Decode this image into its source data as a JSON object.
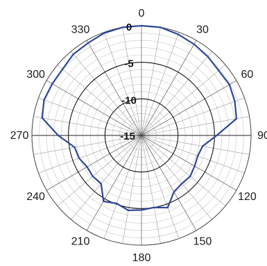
{
  "chart_data": {
    "type": "polar-line",
    "title": "",
    "angle_unit": "degrees",
    "angle_direction": "clockwise",
    "zero_position": "top",
    "angle_ticks": [
      0,
      30,
      60,
      90,
      120,
      150,
      180,
      210,
      240,
      270,
      300,
      330
    ],
    "angle_tick_labels": [
      "0",
      "30",
      "60",
      "90",
      "120",
      "150",
      "180",
      "210",
      "240",
      "270",
      "300",
      "330"
    ],
    "radial_ticks": [
      0,
      -5,
      -10,
      -15
    ],
    "radial_tick_labels": [
      "0",
      "-5",
      "-10",
      "-15"
    ],
    "radial_range": [
      -15,
      0
    ],
    "grid": true,
    "minor_angle_step": 10,
    "minor_radial_step": 1,
    "series": [
      {
        "color": "#2e4799",
        "angles": [
          0,
          10,
          20,
          30,
          40,
          50,
          60,
          70,
          80,
          90,
          100,
          110,
          120,
          130,
          140,
          150,
          160,
          170,
          180,
          190,
          200,
          210,
          220,
          230,
          240,
          250,
          260,
          270,
          280,
          290,
          300,
          310,
          320,
          330,
          340,
          350
        ],
        "values": [
          0,
          0,
          -0.3,
          -0.6,
          -0.9,
          -1.2,
          -1.1,
          -1.4,
          -1.8,
          -4.7,
          -6.5,
          -6.8,
          -6.6,
          -6.3,
          -6.4,
          -6.1,
          -4.5,
          -5.0,
          -4.8,
          -4.6,
          -5.1,
          -4.6,
          -6.4,
          -6.3,
          -6.4,
          -5.9,
          -5.7,
          -3.6,
          -1.2,
          -0.8,
          -0.9,
          -0.9,
          -0.5,
          -0.4,
          -0.1,
          0
        ]
      }
    ]
  }
}
